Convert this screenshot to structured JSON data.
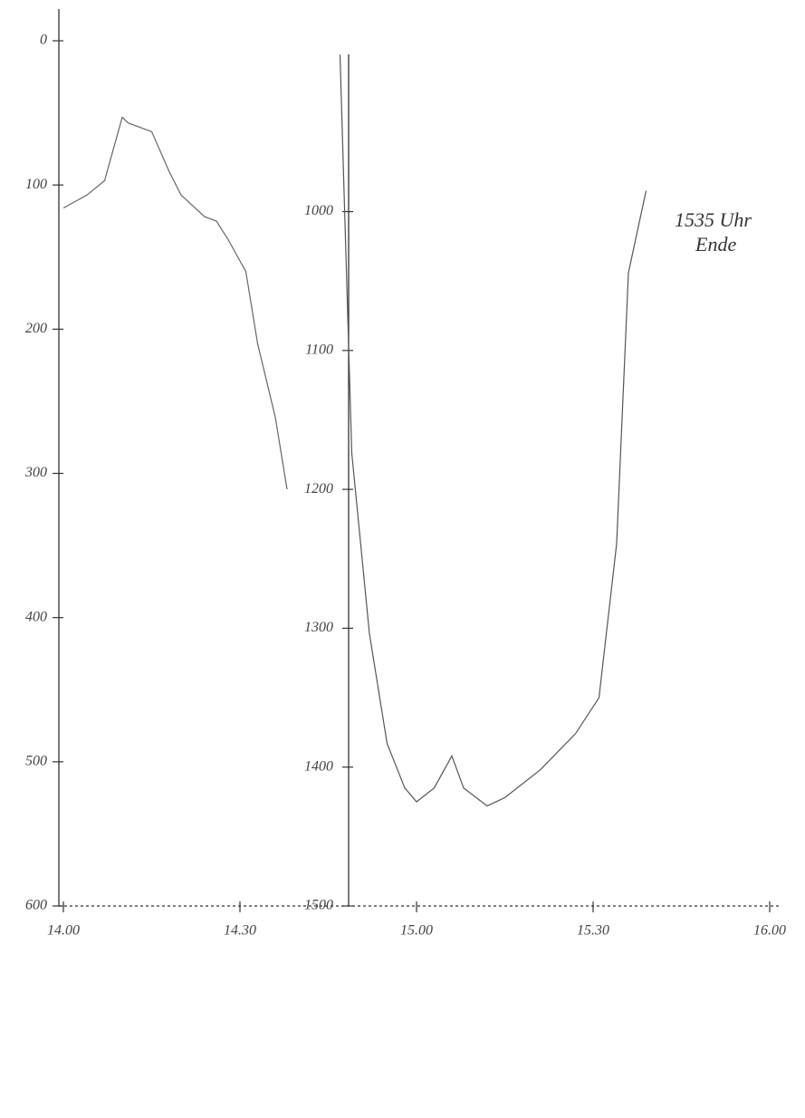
{
  "chart_data": {
    "type": "line",
    "xlim": [
      840,
      960
    ],
    "xticks": [
      {
        "value": 840,
        "label": "14.00"
      },
      {
        "value": 870,
        "label": "14.30"
      },
      {
        "value": 900,
        "label": "15.00"
      },
      {
        "value": 930,
        "label": "15.30"
      },
      {
        "value": 960,
        "label": "16.00"
      }
    ],
    "ylim": [
      0,
      600
    ],
    "yticks": [
      0,
      100,
      200,
      300,
      400,
      500,
      600
    ],
    "y2lim": [
      877,
      1500
    ],
    "y2ticks": [
      1000,
      1100,
      1200,
      1300,
      1400,
      1500
    ],
    "inverted": true,
    "annotations": [
      "1535 Uhr",
      "Ende"
    ],
    "series": [
      {
        "color": "#666666",
        "axis": "y",
        "x": [
          840,
          844,
          847,
          850,
          851,
          855,
          858,
          860,
          864,
          866,
          868,
          871,
          873,
          876,
          878
        ],
        "values": [
          116,
          107,
          97,
          53,
          57,
          63,
          91,
          107,
          122,
          125,
          138,
          160,
          210,
          261,
          311
        ]
      },
      {
        "color": "#555555",
        "axis": "y2",
        "x": [
          887,
          889,
          892,
          895,
          898,
          900,
          903,
          906,
          908,
          912,
          915,
          921,
          927,
          931,
          934,
          936,
          939
        ],
        "values": [
          887,
          1174,
          1304,
          1383,
          1415,
          1425,
          1415,
          1392,
          1415,
          1428,
          1422,
          1402,
          1376,
          1350,
          1239,
          1044,
          985
        ]
      }
    ]
  }
}
